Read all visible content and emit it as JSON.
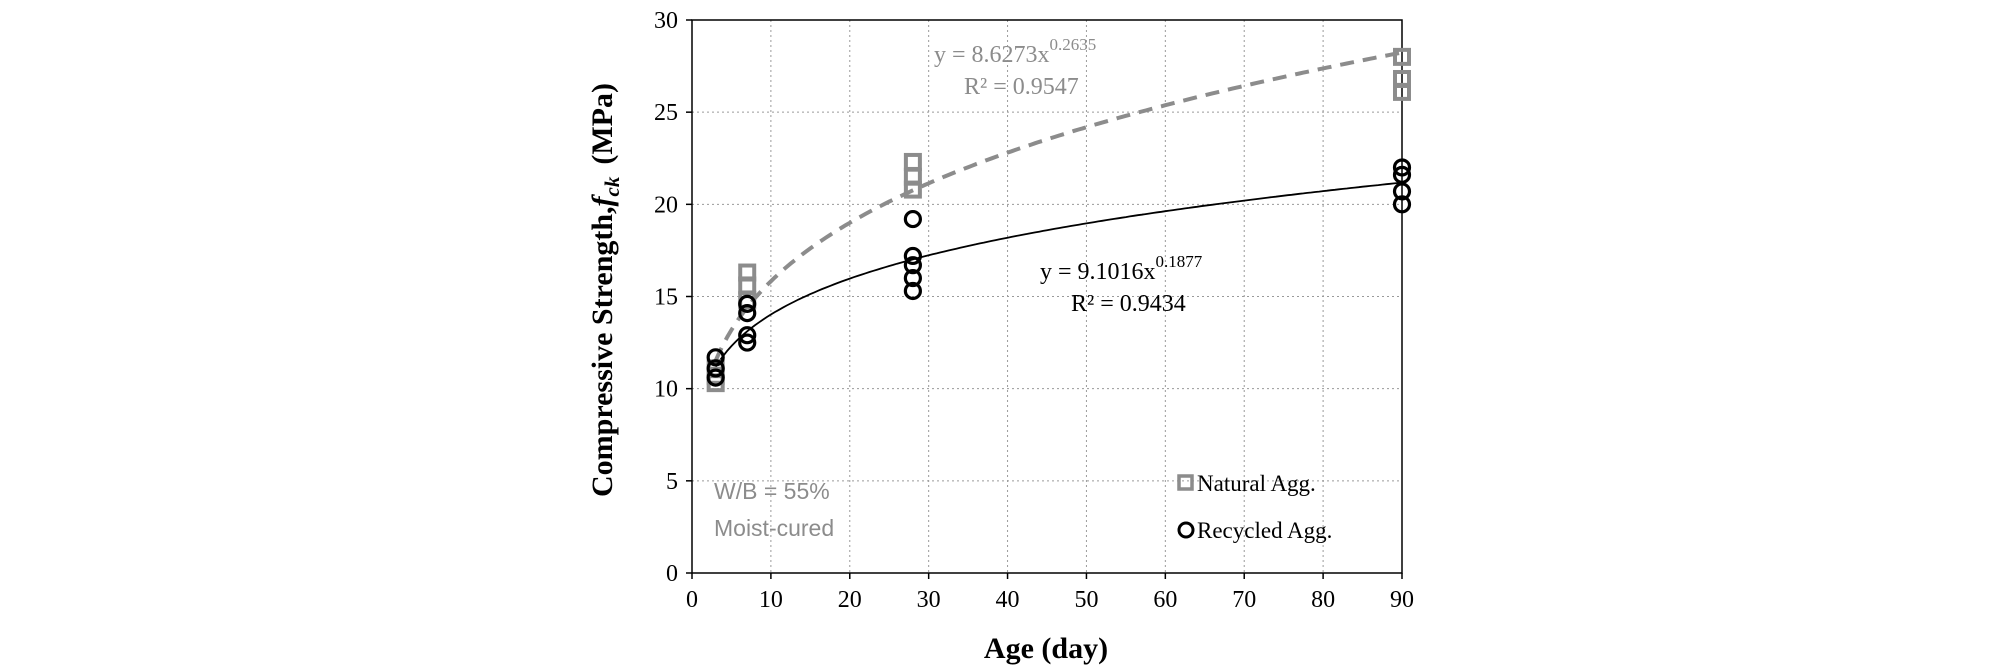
{
  "chart_data": {
    "type": "scatter",
    "xlabel": "Age (day)",
    "ylabel": "Compressive Strength,",
    "ylabel_symbol": "f",
    "ylabel_subscript": "ck",
    "ylabel_unit": "(MPa)",
    "xlim": [
      0,
      90
    ],
    "ylim": [
      0,
      30
    ],
    "xticks": [
      0,
      10,
      20,
      30,
      40,
      50,
      60,
      70,
      80,
      90
    ],
    "yticks": [
      0,
      5,
      10,
      15,
      20,
      25,
      30
    ],
    "grid": true,
    "legend_position": "bottom-right",
    "series": [
      {
        "name": "Natural Agg.",
        "marker": "square",
        "color": "#8c8c8c",
        "points": [
          {
            "x": 3,
            "y": 10.3
          },
          {
            "x": 3,
            "y": 10.7
          },
          {
            "x": 3,
            "y": 11.1
          },
          {
            "x": 7,
            "y": 14.8
          },
          {
            "x": 7,
            "y": 15.6
          },
          {
            "x": 7,
            "y": 16.3
          },
          {
            "x": 28,
            "y": 20.8
          },
          {
            "x": 28,
            "y": 21.5
          },
          {
            "x": 28,
            "y": 22.3
          },
          {
            "x": 90,
            "y": 26.1
          },
          {
            "x": 90,
            "y": 26.8
          },
          {
            "x": 90,
            "y": 28.0
          }
        ],
        "fit": {
          "a": 8.6273,
          "b": 0.2635,
          "style": "dashed"
        }
      },
      {
        "name": "Recycled Agg.",
        "marker": "circle",
        "color": "#000000",
        "points": [
          {
            "x": 3,
            "y": 10.6
          },
          {
            "x": 3,
            "y": 11.1
          },
          {
            "x": 3,
            "y": 11.7
          },
          {
            "x": 7,
            "y": 12.5
          },
          {
            "x": 7,
            "y": 12.9
          },
          {
            "x": 7,
            "y": 14.1
          },
          {
            "x": 7,
            "y": 14.6
          },
          {
            "x": 28,
            "y": 15.3
          },
          {
            "x": 28,
            "y": 16.0
          },
          {
            "x": 28,
            "y": 16.7
          },
          {
            "x": 28,
            "y": 17.2
          },
          {
            "x": 28,
            "y": 19.2
          },
          {
            "x": 90,
            "y": 20.0
          },
          {
            "x": 90,
            "y": 20.7
          },
          {
            "x": 90,
            "y": 21.6
          },
          {
            "x": 90,
            "y": 22.0
          }
        ],
        "fit": {
          "a": 9.1016,
          "b": 0.1877,
          "style": "solid"
        }
      }
    ],
    "annotations": {
      "natural_eq": {
        "prefix": "y = 8.6273x",
        "exponent": "0.2635",
        "r2": "R² = 0.9547",
        "color": "#8c8c8c"
      },
      "recycled_eq": {
        "prefix": "y = 9.1016x",
        "exponent": "0.1877",
        "r2": "R² = 0.9434",
        "color": "#000000"
      },
      "condition_line1": "W/B = 55%",
      "condition_line2": "Moist-cured"
    }
  }
}
